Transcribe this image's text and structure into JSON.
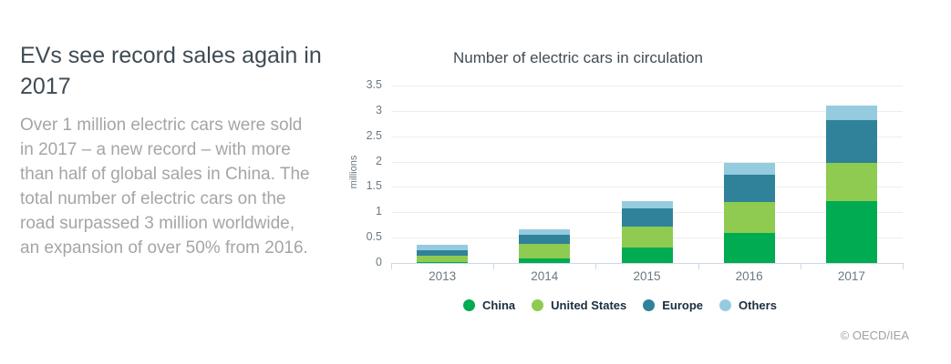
{
  "page": {
    "headline": "EVs see record sales again in 2017",
    "paragraph": "Over 1 million electric cars were sold in 2017 – a new record – with more than half of global sales in China. The total number of electric cars on the road surpassed 3 million worldwide, an expansion of over 50% from 2016.",
    "copyright": "© OECD/IEA"
  },
  "chart_data": {
    "type": "bar",
    "stacked": true,
    "title": "Number of electric cars in circulation",
    "xlabel": "",
    "ylabel": "millions",
    "categories": [
      "2013",
      "2014",
      "2015",
      "2016",
      "2017"
    ],
    "series": [
      {
        "name": "China",
        "color": "#00ab51",
        "values": [
          0.02,
          0.09,
          0.3,
          0.6,
          1.22
        ]
      },
      {
        "name": "United States",
        "color": "#8ecb50",
        "values": [
          0.12,
          0.29,
          0.42,
          0.6,
          0.76
        ]
      },
      {
        "name": "Europe",
        "color": "#2f8299",
        "values": [
          0.11,
          0.17,
          0.35,
          0.54,
          0.83
        ]
      },
      {
        "name": "Others",
        "color": "#95cbdf",
        "values": [
          0.1,
          0.12,
          0.15,
          0.23,
          0.3
        ]
      }
    ],
    "totals": [
      0.35,
      0.67,
      1.22,
      1.97,
      3.11
    ],
    "ylim": [
      0,
      3.5
    ],
    "yticks": [
      "0",
      "0.5",
      "1",
      "1.5",
      "2",
      "2.5",
      "3",
      "3.5"
    ],
    "grid": true,
    "legend_position": "bottom",
    "colors": {
      "grid": "#ededed",
      "axis": "#cdd8e6",
      "axis_text": "#6b7a82",
      "title_text": "#414c54",
      "legend_text": "#1c2e3e"
    }
  }
}
